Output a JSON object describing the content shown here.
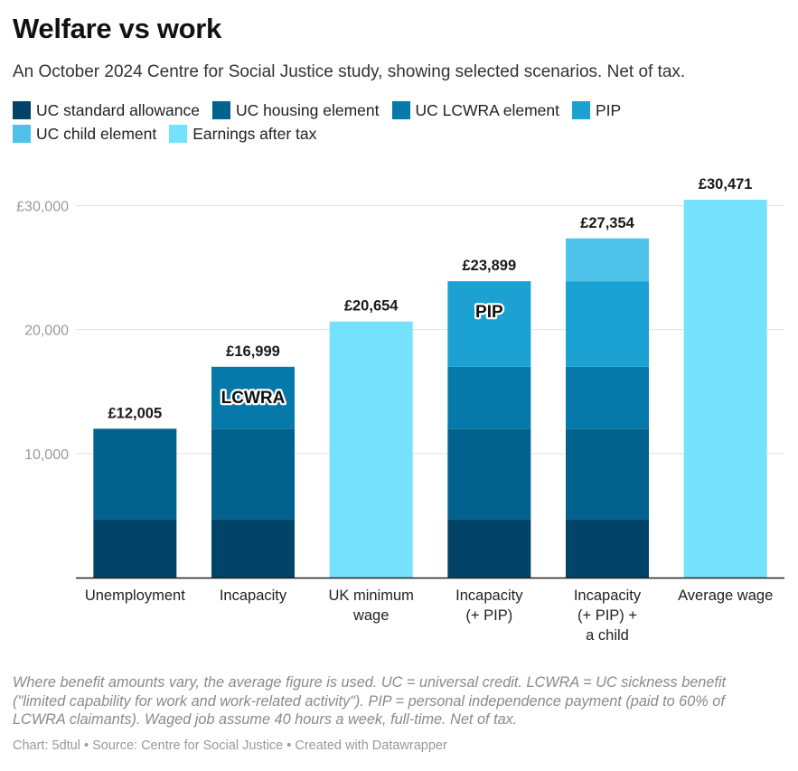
{
  "title": "Welfare vs work",
  "subtitle": "An October 2024 Centre for Social Justice study, showing selected scenarios. Net of tax.",
  "legend": [
    {
      "label": "UC standard allowance",
      "color": "#014468"
    },
    {
      "label": "UC housing element",
      "color": "#02628e"
    },
    {
      "label": "UC LCWRA element",
      "color": "#0679aa"
    },
    {
      "label": "PIP",
      "color": "#1ba1d2"
    },
    {
      "label": "UC child element",
      "color": "#4ec3ea"
    },
    {
      "label": "Earnings after tax",
      "color": "#75e1fc"
    }
  ],
  "chart_data": {
    "type": "bar",
    "stacked": true,
    "categories": [
      [
        "Unemployment"
      ],
      [
        "Incapacity"
      ],
      [
        "UK minimum",
        "wage"
      ],
      [
        "Incapacity",
        "(+ PIP)"
      ],
      [
        "Incapacity",
        "(+ PIP) +",
        "a child"
      ],
      [
        "Average wage"
      ]
    ],
    "series": [
      {
        "name": "UC standard allowance",
        "values": [
          4727,
          4727,
          0,
          4727,
          4727,
          0
        ]
      },
      {
        "name": "UC housing element",
        "values": [
          7278,
          7278,
          0,
          7278,
          7278,
          0
        ]
      },
      {
        "name": "UC LCWRA element",
        "values": [
          0,
          4994,
          0,
          4994,
          4994,
          0
        ]
      },
      {
        "name": "PIP",
        "values": [
          0,
          0,
          0,
          6900,
          6900,
          0
        ]
      },
      {
        "name": "UC child element",
        "values": [
          0,
          0,
          0,
          0,
          3455,
          0
        ]
      },
      {
        "name": "Earnings after tax",
        "values": [
          0,
          0,
          20654,
          0,
          0,
          30471
        ]
      }
    ],
    "totals": [
      "£12,005",
      "£16,999",
      "£20,654",
      "£23,899",
      "£27,354",
      "£30,471"
    ],
    "annotations": [
      {
        "text": "LCWRA",
        "category_index": 1,
        "series": "UC LCWRA element"
      },
      {
        "text": "PIP",
        "category_index": 3,
        "series": "PIP"
      }
    ],
    "yticks": [
      {
        "value": 10000,
        "label": "10,000"
      },
      {
        "value": 20000,
        "label": "20,000"
      },
      {
        "value": 30000,
        "label": "£30,000"
      }
    ],
    "ylim": [
      0,
      30471
    ],
    "xlabel": "",
    "ylabel": "",
    "grid": true
  },
  "notes": "Where benefit amounts vary, the average figure is used. UC = universal credit. LCWRA = UC sickness benefit (\"limited capability for work and work-related activity\"). PIP = personal independence payment (paid to 60% of LCWRA claimants). Waged job assume 40 hours a week, full-time. Net of tax.",
  "credit": "Chart: 5dtul • Source: Centre for Social Justice • Created with Datawrapper"
}
